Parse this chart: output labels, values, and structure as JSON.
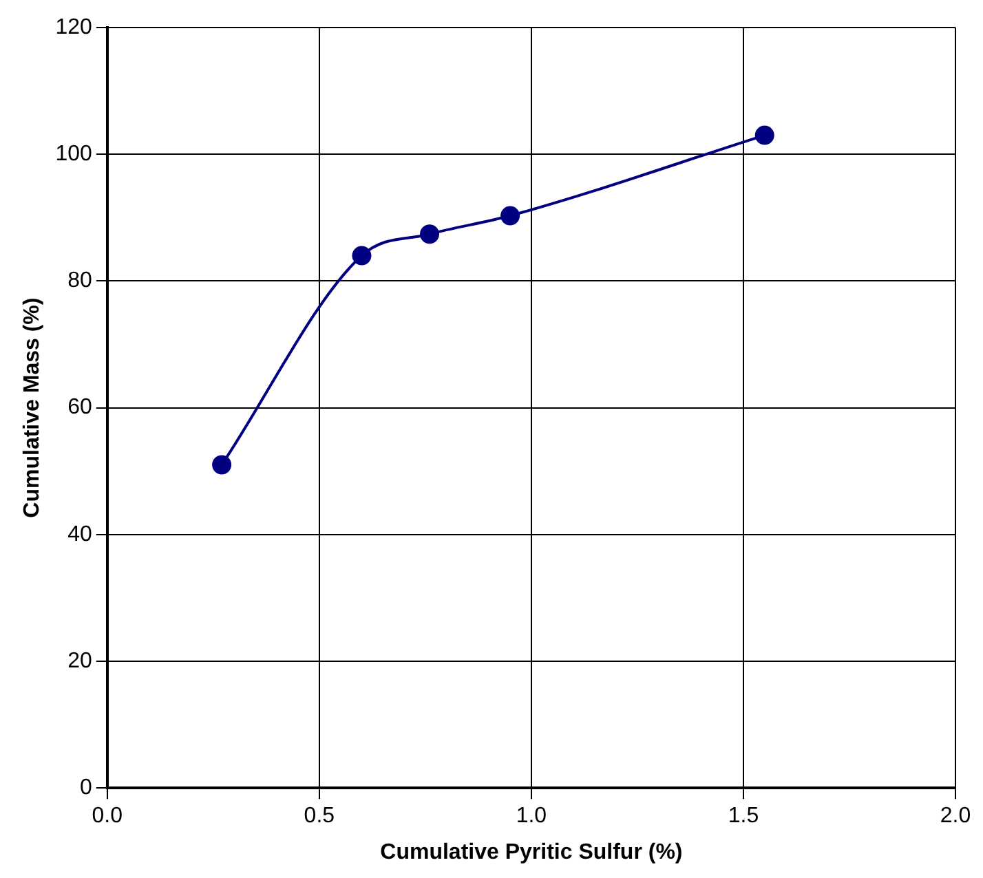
{
  "chart_data": {
    "type": "line",
    "xlabel": "Cumulative Pyritic Sulfur (%)",
    "ylabel": "Cumulative Mass (%)",
    "x": [
      0.27,
      0.6,
      0.76,
      0.95,
      1.55
    ],
    "series": [
      {
        "color": "#000080",
        "values": [
          51,
          84,
          87.4,
          90.3,
          103
        ]
      }
    ],
    "xlim": [
      0,
      2
    ],
    "xticks": [
      {
        "value": 0,
        "label": "0.0"
      },
      {
        "value": 0.5,
        "label": "0.5"
      },
      {
        "value": 1,
        "label": "1.0"
      },
      {
        "value": 1.5,
        "label": "1.5"
      },
      {
        "value": 2,
        "label": "2.0"
      }
    ],
    "ylim": [
      0,
      120
    ],
    "yticks": [
      0,
      20,
      40,
      60,
      80,
      100,
      120
    ],
    "grid": true,
    "legend": false,
    "marker": "circle",
    "line_style": "solid"
  }
}
